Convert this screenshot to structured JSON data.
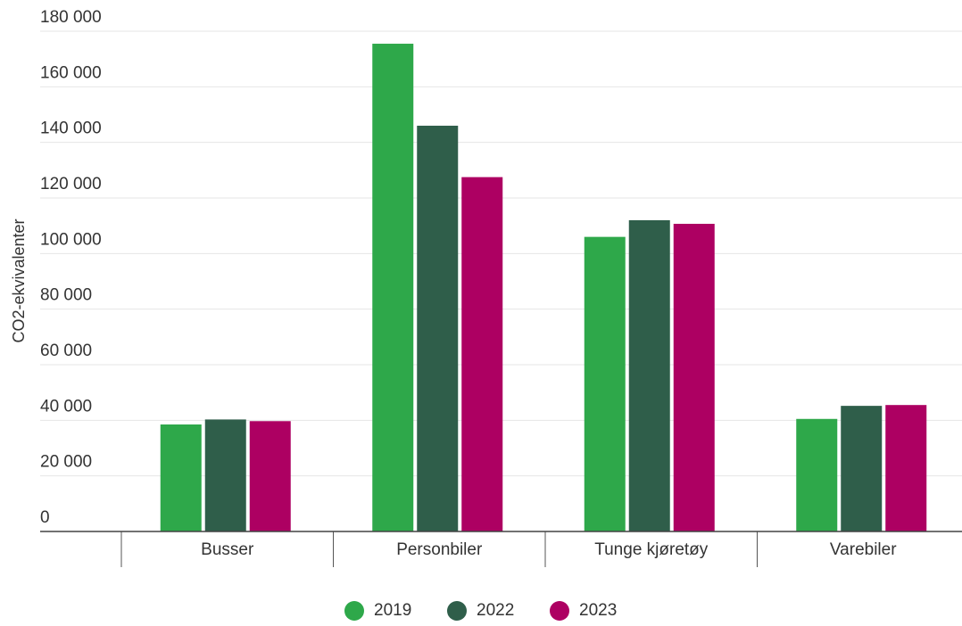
{
  "chart_data": {
    "type": "bar",
    "y_label": "CO2-ekvivalenter",
    "categories": [
      "Busser",
      "Personbiler",
      "Tunge kjøretøy",
      "Varebiler"
    ],
    "series": [
      {
        "name": "2019",
        "color": "#2ea84a",
        "values": [
          38500,
          175500,
          106000,
          40500
        ]
      },
      {
        "name": "2022",
        "color": "#2f5e4a",
        "values": [
          40300,
          146000,
          112000,
          45200
        ]
      },
      {
        "name": "2023",
        "color": "#ad0062",
        "values": [
          39700,
          127500,
          110700,
          45500
        ]
      }
    ],
    "ylim": [
      0,
      180000
    ],
    "yticks": [
      {
        "value": 0,
        "label": "0"
      },
      {
        "value": 20000,
        "label": "20 000"
      },
      {
        "value": 40000,
        "label": "40 000"
      },
      {
        "value": 60000,
        "label": "60 000"
      },
      {
        "value": 80000,
        "label": "80 000"
      },
      {
        "value": 100000,
        "label": "100 000"
      },
      {
        "value": 120000,
        "label": "120 000"
      },
      {
        "value": 140000,
        "label": "140 000"
      },
      {
        "value": 160000,
        "label": "160 000"
      },
      {
        "value": 180000,
        "label": "180 000"
      }
    ],
    "grid": true,
    "legend": "bottom"
  }
}
